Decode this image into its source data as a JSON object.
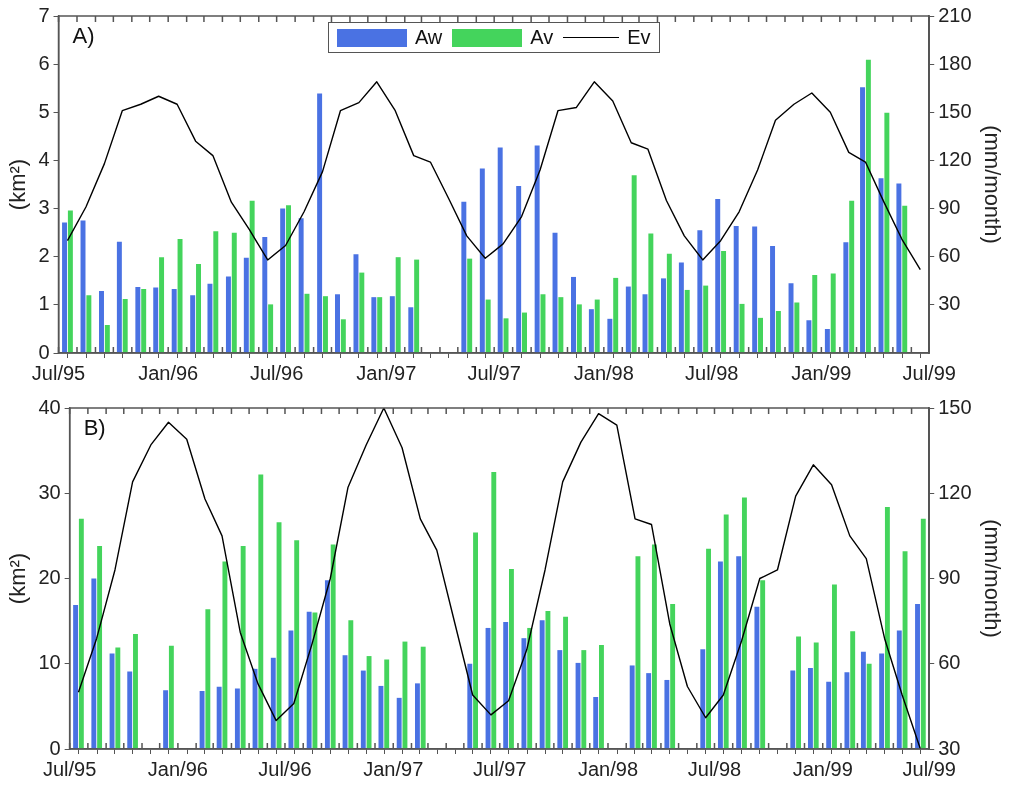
{
  "chart_data": [
    {
      "type": "bar",
      "annotations": [
        "A)"
      ],
      "ylabel": "(km²)",
      "y2label": "(mm/month)",
      "legend": "top",
      "x": [
        "1995-07-16",
        "1995-08-16",
        "1995-09-16",
        "1995-10-16",
        "1995-11-16",
        "1995-12-16",
        "1996-01-16",
        "1996-02-16",
        "1996-03-16",
        "1996-04-16",
        "1996-05-16",
        "1996-06-16",
        "1996-07-16",
        "1996-08-16",
        "1996-09-16",
        "1996-10-16",
        "1996-11-16",
        "1996-12-16",
        "1997-01-16",
        "1997-02-16",
        "1997-03-16",
        "1997-04-16",
        "1997-05-16",
        "1997-06-16",
        "1997-07-16",
        "1997-08-16",
        "1997-09-16",
        "1997-10-16",
        "1997-11-16",
        "1997-12-16",
        "1998-01-16",
        "1998-02-16",
        "1998-03-16",
        "1998-04-16",
        "1998-05-16",
        "1998-06-16",
        "1998-07-16",
        "1998-08-16",
        "1998-09-16",
        "1998-10-16",
        "1998-11-16",
        "1998-12-16",
        "1999-01-16",
        "1999-02-16",
        "1999-03-16",
        "1999-04-16",
        "1999-05-16",
        "1999-06-16"
      ],
      "xlim": [
        "1995-07-01",
        "1999-07-01"
      ],
      "xticks": [
        {
          "value": "1995-07-01",
          "label": "Jul/95"
        },
        {
          "value": "1995-08-01",
          "label": null
        },
        {
          "value": "1995-09-01",
          "label": null
        },
        {
          "value": "1995-10-01",
          "label": null
        },
        {
          "value": "1995-11-01",
          "label": null
        },
        {
          "value": "1995-12-01",
          "label": null
        },
        {
          "value": "1996-01-01",
          "label": "Jan/96"
        },
        {
          "value": "1996-02-01",
          "label": null
        },
        {
          "value": "1996-03-01",
          "label": null
        },
        {
          "value": "1996-04-01",
          "label": null
        },
        {
          "value": "1996-05-01",
          "label": null
        },
        {
          "value": "1996-06-01",
          "label": null
        },
        {
          "value": "1996-07-01",
          "label": "Jul/96"
        },
        {
          "value": "1996-08-01",
          "label": null
        },
        {
          "value": "1996-09-01",
          "label": null
        },
        {
          "value": "1996-10-01",
          "label": null
        },
        {
          "value": "1996-11-01",
          "label": null
        },
        {
          "value": "1996-12-01",
          "label": null
        },
        {
          "value": "1997-01-01",
          "label": "Jan/97"
        },
        {
          "value": "1997-02-01",
          "label": null
        },
        {
          "value": "1997-03-01",
          "label": null
        },
        {
          "value": "1997-04-01",
          "label": null
        },
        {
          "value": "1997-05-01",
          "label": null
        },
        {
          "value": "1997-06-01",
          "label": null
        },
        {
          "value": "1997-07-01",
          "label": "Jul/97"
        },
        {
          "value": "1997-08-01",
          "label": null
        },
        {
          "value": "1997-09-01",
          "label": null
        },
        {
          "value": "1997-10-01",
          "label": null
        },
        {
          "value": "1997-11-01",
          "label": null
        },
        {
          "value": "1997-12-01",
          "label": null
        },
        {
          "value": "1998-01-01",
          "label": "Jan/98"
        },
        {
          "value": "1998-02-01",
          "label": null
        },
        {
          "value": "1998-03-01",
          "label": null
        },
        {
          "value": "1998-04-01",
          "label": null
        },
        {
          "value": "1998-05-01",
          "label": null
        },
        {
          "value": "1998-06-01",
          "label": null
        },
        {
          "value": "1998-07-01",
          "label": "Jul/98"
        },
        {
          "value": "1998-08-01",
          "label": null
        },
        {
          "value": "1998-09-01",
          "label": null
        },
        {
          "value": "1998-10-01",
          "label": null
        },
        {
          "value": "1998-11-01",
          "label": null
        },
        {
          "value": "1998-12-01",
          "label": null
        },
        {
          "value": "1999-01-01",
          "label": "Jan/99"
        },
        {
          "value": "1999-02-01",
          "label": null
        },
        {
          "value": "1999-03-01",
          "label": null
        },
        {
          "value": "1999-04-01",
          "label": null
        },
        {
          "value": "1999-05-01",
          "label": null
        },
        {
          "value": "1999-06-01",
          "label": null
        },
        {
          "value": "1999-07-01",
          "label": "Jul/99"
        }
      ],
      "ylim": [
        0,
        7
      ],
      "yticks": [
        0,
        1,
        2,
        3,
        4,
        5,
        6,
        7
      ],
      "y2lim": [
        0,
        210
      ],
      "y2ticks": [
        30,
        60,
        90,
        120,
        150,
        180,
        210
      ],
      "series": [
        {
          "name": "Aw",
          "color": "#4a72e3",
          "values": [
            2.71,
            2.75,
            1.29,
            2.31,
            1.37,
            1.36,
            1.33,
            1.2,
            1.44,
            1.59,
            1.98,
            2.41,
            3.0,
            2.8,
            5.39,
            1.22,
            2.05,
            1.16,
            1.18,
            0.95,
            null,
            null,
            3.14,
            3.83,
            4.27,
            3.47,
            4.31,
            2.5,
            1.58,
            0.91,
            0.71,
            1.38,
            1.22,
            1.55,
            1.88,
            2.55,
            3.2,
            2.64,
            2.63,
            2.22,
            1.45,
            0.68,
            0.5,
            2.3,
            5.52,
            3.63,
            3.52,
            null
          ]
        },
        {
          "name": "Av",
          "color": "#44d45c",
          "values": [
            2.96,
            1.2,
            0.58,
            1.12,
            1.33,
            1.99,
            2.37,
            1.85,
            2.53,
            2.5,
            3.16,
            1.01,
            3.07,
            1.23,
            1.18,
            0.7,
            1.67,
            1.16,
            1.99,
            1.94,
            null,
            null,
            1.96,
            1.11,
            0.72,
            0.84,
            1.22,
            1.16,
            1.01,
            1.11,
            1.56,
            3.69,
            2.48,
            2.06,
            1.31,
            1.4,
            2.12,
            1.02,
            0.73,
            0.87,
            1.05,
            1.62,
            1.65,
            3.16,
            6.09,
            4.99,
            3.06,
            null
          ]
        },
        {
          "name": "Ev",
          "type": "line",
          "axis": "y2",
          "color": "#000000",
          "values": [
            70,
            91,
            118,
            151,
            155,
            160,
            155,
            132,
            123,
            94,
            77,
            58,
            67,
            88,
            113,
            151,
            156,
            169,
            151,
            123,
            119,
            96,
            73,
            59,
            68,
            85,
            114,
            151,
            153,
            169,
            157,
            131,
            127,
            95,
            73,
            58,
            70,
            88,
            114,
            145,
            155,
            162,
            150,
            125,
            119,
            94,
            71,
            52
          ]
        }
      ]
    },
    {
      "type": "bar",
      "annotations": [
        "B)"
      ],
      "ylabel": "(km²)",
      "y2label": "(mm/month)",
      "x": [
        "1995-07-16",
        "1995-08-16",
        "1995-09-16",
        "1995-10-16",
        "1995-11-16",
        "1995-12-16",
        "1996-01-16",
        "1996-02-16",
        "1996-03-16",
        "1996-04-16",
        "1996-05-16",
        "1996-06-16",
        "1996-07-16",
        "1996-08-16",
        "1996-09-16",
        "1996-10-16",
        "1996-11-16",
        "1996-12-16",
        "1997-01-16",
        "1997-02-16",
        "1997-03-16",
        "1997-04-16",
        "1997-05-16",
        "1997-06-16",
        "1997-07-16",
        "1997-08-16",
        "1997-09-16",
        "1997-10-16",
        "1997-11-16",
        "1997-12-16",
        "1998-01-16",
        "1998-02-16",
        "1998-03-16",
        "1998-04-16",
        "1998-05-16",
        "1998-06-16",
        "1998-07-16",
        "1998-08-16",
        "1998-09-16",
        "1998-10-16",
        "1998-11-16",
        "1998-12-16",
        "1999-01-16",
        "1999-02-16",
        "1999-03-16",
        "1999-04-16",
        "1999-05-16",
        "1999-06-16"
      ],
      "xlim": [
        "1995-07-01",
        "1999-07-01"
      ],
      "xticks": [
        {
          "value": "1995-07-01",
          "label": "Jul/95"
        },
        {
          "value": "1995-08-01",
          "label": null
        },
        {
          "value": "1995-09-01",
          "label": null
        },
        {
          "value": "1995-10-01",
          "label": null
        },
        {
          "value": "1995-11-01",
          "label": null
        },
        {
          "value": "1995-12-01",
          "label": null
        },
        {
          "value": "1996-01-01",
          "label": "Jan/96"
        },
        {
          "value": "1996-02-01",
          "label": null
        },
        {
          "value": "1996-03-01",
          "label": null
        },
        {
          "value": "1996-04-01",
          "label": null
        },
        {
          "value": "1996-05-01",
          "label": null
        },
        {
          "value": "1996-06-01",
          "label": null
        },
        {
          "value": "1996-07-01",
          "label": "Jul/96"
        },
        {
          "value": "1996-08-01",
          "label": null
        },
        {
          "value": "1996-09-01",
          "label": null
        },
        {
          "value": "1996-10-01",
          "label": null
        },
        {
          "value": "1996-11-01",
          "label": null
        },
        {
          "value": "1996-12-01",
          "label": null
        },
        {
          "value": "1997-01-01",
          "label": "Jan/97"
        },
        {
          "value": "1997-02-01",
          "label": null
        },
        {
          "value": "1997-03-01",
          "label": null
        },
        {
          "value": "1997-04-01",
          "label": null
        },
        {
          "value": "1997-05-01",
          "label": null
        },
        {
          "value": "1997-06-01",
          "label": null
        },
        {
          "value": "1997-07-01",
          "label": "Jul/97"
        },
        {
          "value": "1997-08-01",
          "label": null
        },
        {
          "value": "1997-09-01",
          "label": null
        },
        {
          "value": "1997-10-01",
          "label": null
        },
        {
          "value": "1997-11-01",
          "label": null
        },
        {
          "value": "1997-12-01",
          "label": null
        },
        {
          "value": "1998-01-01",
          "label": "Jan/98"
        },
        {
          "value": "1998-02-01",
          "label": null
        },
        {
          "value": "1998-03-01",
          "label": null
        },
        {
          "value": "1998-04-01",
          "label": null
        },
        {
          "value": "1998-05-01",
          "label": null
        },
        {
          "value": "1998-06-01",
          "label": null
        },
        {
          "value": "1998-07-01",
          "label": "Jul/98"
        },
        {
          "value": "1998-08-01",
          "label": null
        },
        {
          "value": "1998-09-01",
          "label": null
        },
        {
          "value": "1998-10-01",
          "label": null
        },
        {
          "value": "1998-11-01",
          "label": null
        },
        {
          "value": "1998-12-01",
          "label": null
        },
        {
          "value": "1999-01-01",
          "label": "Jan/99"
        },
        {
          "value": "1999-02-01",
          "label": null
        },
        {
          "value": "1999-03-01",
          "label": null
        },
        {
          "value": "1999-04-01",
          "label": null
        },
        {
          "value": "1999-05-01",
          "label": null
        },
        {
          "value": "1999-06-01",
          "label": null
        },
        {
          "value": "1999-07-01",
          "label": "Jul/99"
        }
      ],
      "ylim": [
        0,
        40
      ],
      "yticks": [
        0,
        10,
        20,
        30,
        40
      ],
      "y2lim": [
        30,
        150
      ],
      "y2ticks": [
        30,
        60,
        90,
        120,
        150
      ],
      "series": [
        {
          "color": "#4a72e3",
          "values": [
            16.9,
            20.0,
            11.2,
            9.1,
            null,
            6.9,
            null,
            6.8,
            7.3,
            7.1,
            9.4,
            10.7,
            13.9,
            16.1,
            19.8,
            11.0,
            9.2,
            7.4,
            6.0,
            7.7,
            null,
            null,
            10.0,
            14.2,
            14.9,
            13.0,
            15.1,
            11.6,
            10.1,
            6.1,
            null,
            9.8,
            8.9,
            8.1,
            null,
            11.7,
            22.0,
            22.6,
            16.7,
            null,
            9.2,
            9.5,
            7.9,
            9.0,
            11.4,
            11.2,
            13.9,
            17.0
          ]
        },
        {
          "color": "#44d45c",
          "values": [
            27.0,
            23.8,
            11.9,
            13.5,
            null,
            12.1,
            null,
            16.4,
            22.0,
            23.8,
            32.2,
            26.6,
            24.5,
            16.0,
            24.0,
            15.1,
            10.9,
            10.5,
            12.6,
            12.0,
            null,
            null,
            25.4,
            32.5,
            21.1,
            14.2,
            16.2,
            15.5,
            11.6,
            12.2,
            null,
            22.6,
            24.0,
            17.0,
            null,
            23.5,
            27.5,
            29.5,
            19.8,
            null,
            13.2,
            12.5,
            19.3,
            13.8,
            10.0,
            28.4,
            23.2,
            27.0
          ]
        },
        {
          "type": "line",
          "axis": "y2",
          "color": "#000000",
          "values": [
            50,
            69,
            93,
            124,
            137,
            145,
            139,
            118,
            105,
            71,
            53,
            40,
            46,
            67,
            90,
            122,
            137,
            150,
            136,
            111,
            100,
            74,
            49,
            42,
            47,
            65,
            93,
            124,
            138,
            148,
            144,
            111,
            109,
            74,
            52,
            41,
            49,
            68,
            90,
            93,
            119,
            130,
            123,
            105,
            97,
            69,
            49,
            30
          ]
        }
      ]
    }
  ]
}
